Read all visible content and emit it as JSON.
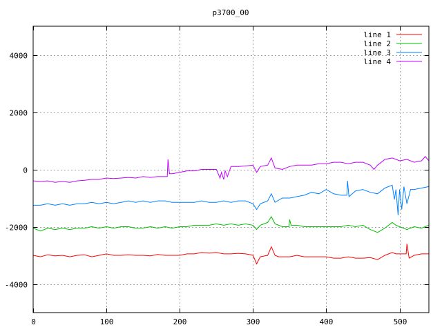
{
  "chart_data": {
    "type": "line",
    "title": "p3700_00",
    "xlabel": "",
    "ylabel": "",
    "xlim": [
      0,
      540
    ],
    "ylim": [
      -5000,
      5000
    ],
    "xticks": [
      0,
      100,
      200,
      300,
      400,
      500
    ],
    "yticks": [
      -4000,
      -2000,
      0,
      2000,
      4000
    ],
    "grid": true,
    "legend_position": "top-right",
    "series": [
      {
        "name": "line 1",
        "color": "#ff0000",
        "x": [
          0,
          10,
          20,
          30,
          40,
          50,
          60,
          70,
          80,
          90,
          100,
          110,
          120,
          130,
          140,
          150,
          160,
          170,
          180,
          190,
          200,
          210,
          220,
          230,
          240,
          250,
          260,
          270,
          280,
          290,
          300,
          305,
          310,
          320,
          325,
          330,
          335,
          340,
          350,
          360,
          370,
          380,
          390,
          400,
          410,
          420,
          430,
          440,
          450,
          460,
          470,
          480,
          490,
          495,
          500,
          505,
          509,
          510,
          513,
          520,
          530,
          540
        ],
        "y": [
          -3000,
          -3050,
          -2980,
          -3020,
          -3000,
          -3050,
          -3000,
          -2980,
          -3050,
          -3000,
          -2950,
          -3000,
          -3000,
          -2980,
          -3000,
          -3000,
          -3020,
          -2970,
          -3000,
          -3000,
          -3000,
          -2950,
          -2950,
          -2900,
          -2920,
          -2900,
          -2950,
          -2950,
          -2930,
          -2950,
          -3000,
          -3300,
          -3050,
          -3000,
          -2700,
          -3000,
          -3050,
          -3050,
          -3050,
          -3000,
          -3050,
          -3050,
          -3050,
          -3050,
          -3100,
          -3100,
          -3050,
          -3100,
          -3100,
          -3080,
          -3150,
          -3000,
          -2900,
          -2950,
          -2950,
          -2950,
          -2950,
          -2600,
          -3100,
          -3000,
          -2950,
          -2950
        ]
      },
      {
        "name": "line 2",
        "color": "#00c000",
        "x": [
          0,
          10,
          20,
          30,
          40,
          50,
          60,
          70,
          80,
          90,
          100,
          110,
          120,
          130,
          140,
          150,
          160,
          170,
          180,
          190,
          200,
          210,
          220,
          230,
          240,
          250,
          260,
          270,
          280,
          290,
          300,
          305,
          310,
          320,
          325,
          330,
          340,
          349,
          350,
          352,
          360,
          370,
          380,
          390,
          400,
          410,
          420,
          430,
          440,
          450,
          460,
          470,
          480,
          490,
          495,
          500,
          510,
          520,
          530,
          540
        ],
        "y": [
          -2050,
          -2150,
          -2050,
          -2100,
          -2050,
          -2100,
          -2050,
          -2050,
          -2000,
          -2050,
          -2000,
          -2050,
          -2000,
          -2000,
          -2050,
          -2050,
          -2000,
          -2050,
          -2000,
          -2050,
          -2000,
          -2000,
          -1950,
          -1950,
          -1950,
          -1900,
          -1950,
          -1900,
          -1950,
          -1900,
          -1950,
          -2100,
          -1950,
          -1850,
          -1650,
          -1900,
          -2000,
          -2000,
          -1750,
          -1950,
          -1950,
          -2000,
          -2000,
          -2000,
          -2000,
          -2000,
          -2000,
          -1950,
          -2000,
          -1950,
          -2100,
          -2200,
          -2050,
          -1850,
          -1950,
          -2000,
          -2100,
          -2000,
          -2050,
          -1950
        ]
      },
      {
        "name": "line 3",
        "color": "#0080ff",
        "x": [
          0,
          10,
          20,
          30,
          40,
          50,
          60,
          70,
          80,
          90,
          100,
          110,
          120,
          130,
          140,
          150,
          160,
          170,
          180,
          190,
          200,
          210,
          220,
          230,
          240,
          250,
          260,
          270,
          280,
          290,
          300,
          305,
          310,
          320,
          325,
          330,
          340,
          350,
          360,
          370,
          380,
          390,
          400,
          410,
          420,
          428,
          429,
          431,
          440,
          450,
          460,
          470,
          480,
          490,
          493,
          495,
          497,
          498,
          500,
          503,
          506,
          510,
          515,
          520,
          530,
          540
        ],
        "y": [
          -1250,
          -1250,
          -1200,
          -1250,
          -1200,
          -1250,
          -1200,
          -1200,
          -1150,
          -1200,
          -1150,
          -1200,
          -1150,
          -1100,
          -1150,
          -1100,
          -1150,
          -1100,
          -1100,
          -1150,
          -1150,
          -1150,
          -1150,
          -1100,
          -1150,
          -1150,
          -1100,
          -1150,
          -1100,
          -1100,
          -1200,
          -1400,
          -1200,
          -1100,
          -850,
          -1150,
          -1000,
          -1000,
          -950,
          -900,
          -800,
          -850,
          -700,
          -850,
          -900,
          -900,
          -400,
          -950,
          -750,
          -700,
          -800,
          -850,
          -650,
          -550,
          -1050,
          -700,
          -1300,
          -1600,
          -700,
          -1400,
          -600,
          -1200,
          -700,
          -700,
          -650,
          -600
        ]
      },
      {
        "name": "line 4",
        "color": "#c000ff",
        "x": [
          0,
          10,
          20,
          30,
          40,
          50,
          60,
          70,
          80,
          90,
          100,
          110,
          120,
          130,
          140,
          150,
          160,
          170,
          180,
          183,
          184,
          186,
          190,
          200,
          210,
          220,
          230,
          240,
          250,
          255,
          257,
          260,
          262,
          265,
          270,
          280,
          290,
          300,
          305,
          310,
          320,
          325,
          330,
          340,
          350,
          360,
          370,
          380,
          390,
          400,
          410,
          420,
          430,
          440,
          450,
          460,
          465,
          470,
          480,
          490,
          500,
          510,
          520,
          530,
          535,
          540
        ],
        "y": [
          -400,
          -420,
          -400,
          -450,
          -420,
          -450,
          -400,
          -380,
          -350,
          -350,
          -300,
          -320,
          -300,
          -280,
          -300,
          -250,
          -280,
          -250,
          -250,
          -250,
          350,
          -150,
          -150,
          -100,
          -50,
          -50,
          0,
          0,
          0,
          -300,
          -100,
          -350,
          -50,
          -250,
          100,
          100,
          120,
          150,
          -100,
          100,
          150,
          400,
          50,
          0,
          100,
          150,
          150,
          150,
          200,
          200,
          250,
          250,
          200,
          250,
          250,
          150,
          0,
          150,
          350,
          400,
          300,
          350,
          250,
          300,
          450,
          300
        ]
      }
    ]
  }
}
